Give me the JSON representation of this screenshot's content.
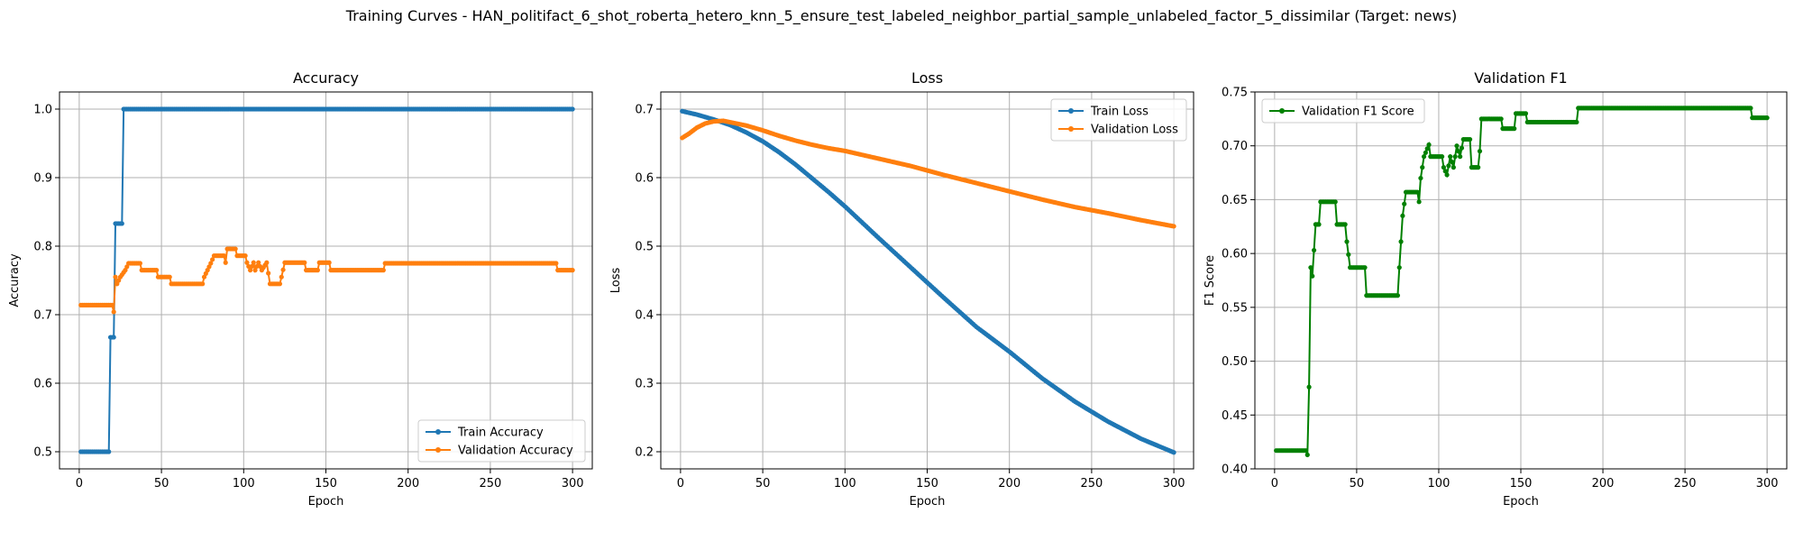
{
  "figure_title": "Training Curves - HAN_politifact_6_shot_roberta_hetero_knn_5_ensure_test_labeled_neighbor_partial_sample_unlabeled_factor_5_dissimilar (Target: news)",
  "colors": {
    "train": "#1f77b4",
    "validation": "#ff7f0e",
    "f1": "#008000",
    "grid": "#b0b0b0"
  },
  "chart_data": [
    {
      "type": "line",
      "title": "Accuracy",
      "xlabel": "Epoch",
      "ylabel": "Accuracy",
      "xlim": [
        -12,
        312
      ],
      "ylim": [
        0.475,
        1.025
      ],
      "xticks": [
        0,
        50,
        100,
        150,
        200,
        250,
        300
      ],
      "yticks": [
        0.5,
        0.6,
        0.7,
        0.8,
        0.9,
        1.0
      ],
      "ytick_labels": [
        "0.5",
        "0.6",
        "0.7",
        "0.8",
        "0.9",
        "1.0"
      ],
      "grid": true,
      "legend": "lower right",
      "epochs": [
        1,
        300
      ],
      "series": [
        {
          "name": "Train Accuracy",
          "color_key": "train",
          "points": [
            [
              1,
              0.5
            ],
            [
              18,
              0.5
            ],
            [
              19,
              0.667
            ],
            [
              21,
              0.667
            ],
            [
              22,
              0.833
            ],
            [
              26,
              0.833
            ],
            [
              27,
              1.0
            ],
            [
              300,
              1.0
            ]
          ]
        },
        {
          "name": "Validation Accuracy",
          "color_key": "validation",
          "points": [
            [
              1,
              0.714
            ],
            [
              20,
              0.714
            ],
            [
              21,
              0.704
            ],
            [
              22,
              0.755
            ],
            [
              23,
              0.745
            ],
            [
              25,
              0.755
            ],
            [
              28,
              0.765
            ],
            [
              30,
              0.775
            ],
            [
              37,
              0.775
            ],
            [
              38,
              0.765
            ],
            [
              47,
              0.765
            ],
            [
              48,
              0.755
            ],
            [
              55,
              0.755
            ],
            [
              56,
              0.745
            ],
            [
              75,
              0.745
            ],
            [
              76,
              0.755
            ],
            [
              78,
              0.765
            ],
            [
              80,
              0.775
            ],
            [
              82,
              0.786
            ],
            [
              88,
              0.786
            ],
            [
              89,
              0.776
            ],
            [
              90,
              0.796
            ],
            [
              95,
              0.796
            ],
            [
              96,
              0.786
            ],
            [
              101,
              0.786
            ],
            [
              102,
              0.776
            ],
            [
              104,
              0.765
            ],
            [
              106,
              0.776
            ],
            [
              107,
              0.765
            ],
            [
              109,
              0.776
            ],
            [
              111,
              0.765
            ],
            [
              114,
              0.776
            ],
            [
              116,
              0.745
            ],
            [
              122,
              0.745
            ],
            [
              123,
              0.755
            ],
            [
              125,
              0.776
            ],
            [
              137,
              0.776
            ],
            [
              138,
              0.765
            ],
            [
              145,
              0.765
            ],
            [
              146,
              0.776
            ],
            [
              152,
              0.776
            ],
            [
              153,
              0.765
            ],
            [
              185,
              0.765
            ],
            [
              186,
              0.775
            ],
            [
              290,
              0.775
            ],
            [
              291,
              0.765
            ],
            [
              300,
              0.765
            ]
          ]
        }
      ]
    },
    {
      "type": "line",
      "title": "Loss",
      "xlabel": "Epoch",
      "ylabel": "Loss",
      "xlim": [
        -12,
        312
      ],
      "ylim": [
        0.175,
        0.725
      ],
      "xticks": [
        0,
        50,
        100,
        150,
        200,
        250,
        300
      ],
      "yticks": [
        0.2,
        0.3,
        0.4,
        0.5,
        0.6,
        0.7
      ],
      "ytick_labels": [
        "0.2",
        "0.3",
        "0.4",
        "0.5",
        "0.6",
        "0.7"
      ],
      "grid": true,
      "legend": "upper right",
      "epochs": [
        1,
        300
      ],
      "series": [
        {
          "name": "Train Loss",
          "color_key": "train",
          "points": [
            [
              1,
              0.697
            ],
            [
              10,
              0.692
            ],
            [
              20,
              0.685
            ],
            [
              30,
              0.677
            ],
            [
              40,
              0.666
            ],
            [
              50,
              0.653
            ],
            [
              60,
              0.637
            ],
            [
              70,
              0.619
            ],
            [
              80,
              0.599
            ],
            [
              90,
              0.579
            ],
            [
              100,
              0.558
            ],
            [
              120,
              0.513
            ],
            [
              140,
              0.469
            ],
            [
              160,
              0.425
            ],
            [
              180,
              0.382
            ],
            [
              200,
              0.346
            ],
            [
              220,
              0.307
            ],
            [
              240,
              0.273
            ],
            [
              260,
              0.244
            ],
            [
              280,
              0.219
            ],
            [
              300,
              0.199
            ]
          ]
        },
        {
          "name": "Validation Loss",
          "color_key": "validation",
          "points": [
            [
              1,
              0.658
            ],
            [
              5,
              0.664
            ],
            [
              10,
              0.673
            ],
            [
              15,
              0.679
            ],
            [
              20,
              0.682
            ],
            [
              26,
              0.683
            ],
            [
              30,
              0.681
            ],
            [
              40,
              0.676
            ],
            [
              50,
              0.669
            ],
            [
              60,
              0.661
            ],
            [
              70,
              0.654
            ],
            [
              80,
              0.648
            ],
            [
              90,
              0.643
            ],
            [
              100,
              0.639
            ],
            [
              120,
              0.628
            ],
            [
              140,
              0.617
            ],
            [
              160,
              0.604
            ],
            [
              180,
              0.592
            ],
            [
              200,
              0.58
            ],
            [
              220,
              0.568
            ],
            [
              240,
              0.557
            ],
            [
              260,
              0.548
            ],
            [
              280,
              0.538
            ],
            [
              300,
              0.529
            ]
          ]
        }
      ]
    },
    {
      "type": "line",
      "title": "Validation F1",
      "xlabel": "Epoch",
      "ylabel": "F1 Score",
      "xlim": [
        -12,
        312
      ],
      "ylim": [
        0.4,
        0.75
      ],
      "xticks": [
        0,
        50,
        100,
        150,
        200,
        250,
        300
      ],
      "yticks": [
        0.4,
        0.45,
        0.5,
        0.55,
        0.6,
        0.65,
        0.7,
        0.75
      ],
      "ytick_labels": [
        "0.40",
        "0.45",
        "0.50",
        "0.55",
        "0.60",
        "0.65",
        "0.70",
        "0.75"
      ],
      "grid": true,
      "legend": "upper left",
      "epochs": [
        1,
        300
      ],
      "series": [
        {
          "name": "Validation F1 Score",
          "color_key": "f1",
          "points": [
            [
              1,
              0.417
            ],
            [
              19,
              0.417
            ],
            [
              20,
              0.413
            ],
            [
              21,
              0.476
            ],
            [
              22,
              0.587
            ],
            [
              23,
              0.579
            ],
            [
              24,
              0.603
            ],
            [
              25,
              0.627
            ],
            [
              27,
              0.627
            ],
            [
              28,
              0.648
            ],
            [
              37,
              0.648
            ],
            [
              38,
              0.627
            ],
            [
              43,
              0.627
            ],
            [
              44,
              0.611
            ],
            [
              46,
              0.587
            ],
            [
              55,
              0.587
            ],
            [
              56,
              0.561
            ],
            [
              75,
              0.561
            ],
            [
              76,
              0.587
            ],
            [
              78,
              0.635
            ],
            [
              80,
              0.657
            ],
            [
              87,
              0.657
            ],
            [
              88,
              0.648
            ],
            [
              89,
              0.67
            ],
            [
              91,
              0.69
            ],
            [
              94,
              0.701
            ],
            [
              95,
              0.69
            ],
            [
              102,
              0.69
            ],
            [
              103,
              0.68
            ],
            [
              105,
              0.673
            ],
            [
              107,
              0.69
            ],
            [
              109,
              0.68
            ],
            [
              111,
              0.7
            ],
            [
              113,
              0.69
            ],
            [
              115,
              0.706
            ],
            [
              119,
              0.706
            ],
            [
              120,
              0.68
            ],
            [
              124,
              0.68
            ],
            [
              125,
              0.695
            ],
            [
              126,
              0.725
            ],
            [
              138,
              0.725
            ],
            [
              139,
              0.716
            ],
            [
              146,
              0.716
            ],
            [
              147,
              0.73
            ],
            [
              153,
              0.73
            ],
            [
              154,
              0.722
            ],
            [
              184,
              0.722
            ],
            [
              185,
              0.735
            ],
            [
              290,
              0.735
            ],
            [
              291,
              0.726
            ],
            [
              300,
              0.726
            ]
          ]
        }
      ]
    }
  ]
}
